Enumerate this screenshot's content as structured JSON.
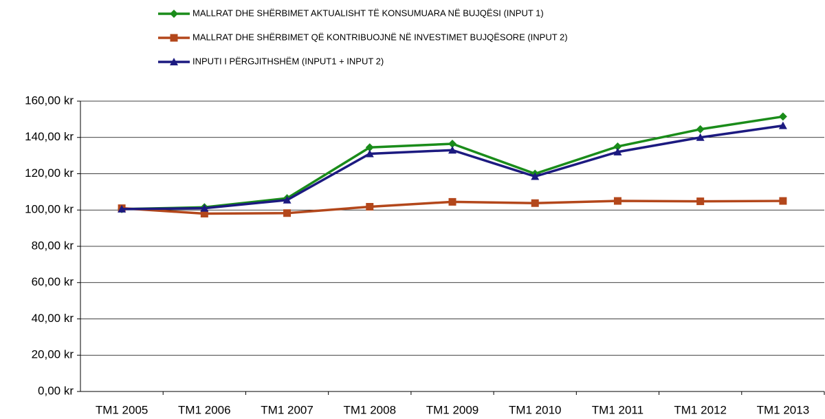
{
  "chart_data": {
    "type": "line",
    "categories": [
      "TM1 2005",
      "TM1 2006",
      "TM1 2007",
      "TM1 2008",
      "TM1 2009",
      "TM1 2010",
      "TM1 2011",
      "TM1 2012",
      "TM1 2013"
    ],
    "series": [
      {
        "name": "MALLRAT DHE SHËRBIMET AKTUALISHT TË KONSUMUARA NË BUJQËSI (INPUT 1)",
        "color": "#1a8c1a",
        "marker": "diamond",
        "values": [
          100.5,
          101.5,
          106.5,
          134.5,
          136.5,
          120,
          135,
          144.5,
          151.5
        ]
      },
      {
        "name": "MALLRAT DHE SHËRBIMET QË KONTRIBUOJNË NË INVESTIMET BUJQËSORE (INPUT 2)",
        "color": "#b3471b",
        "marker": "square",
        "values": [
          101,
          98,
          98.3,
          101.8,
          104.5,
          103.8,
          105,
          104.8,
          105
        ]
      },
      {
        "name": "INPUTI I PËRGJITHSHËM   (INPUT1 + INPUT 2)",
        "color": "#1c1a80",
        "marker": "triangle",
        "values": [
          100.5,
          101,
          105.5,
          131,
          133,
          118.5,
          132,
          140,
          146.5
        ]
      }
    ],
    "ylim": [
      0,
      160
    ],
    "yticks": [
      {
        "value": 0,
        "label": "0,00 kr"
      },
      {
        "value": 20,
        "label": "20,00 kr"
      },
      {
        "value": 40,
        "label": "40,00 kr"
      },
      {
        "value": 60,
        "label": "60,00 kr"
      },
      {
        "value": 80,
        "label": "80,00 kr"
      },
      {
        "value": 100,
        "label": "100,00 kr"
      },
      {
        "value": 120,
        "label": "120,00 kr"
      },
      {
        "value": 140,
        "label": "140,00 kr"
      },
      {
        "value": 160,
        "label": "160,00 kr"
      }
    ],
    "grid": true,
    "legend": "top"
  }
}
